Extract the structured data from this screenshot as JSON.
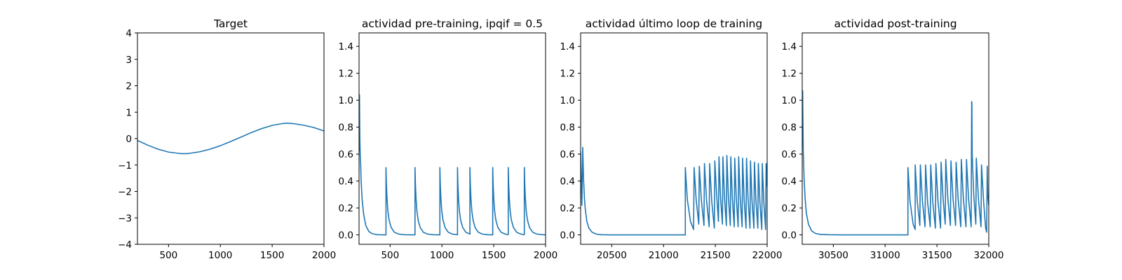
{
  "figure": {
    "line_color": "#1f77b4"
  },
  "chart_data": [
    {
      "type": "line",
      "title": "Target",
      "xlabel": "",
      "ylabel": "",
      "xlim": [
        200,
        2000
      ],
      "ylim": [
        -4,
        4
      ],
      "x_ticks": [
        500,
        1000,
        1500,
        2000
      ],
      "y_ticks": [
        -4,
        -3,
        -2,
        -1,
        0,
        1,
        2,
        3,
        4
      ],
      "grid": false,
      "series": [
        {
          "x": [
            200,
            300,
            400,
            500,
            600,
            650,
            700,
            800,
            900,
            1000,
            1100,
            1200,
            1300,
            1400,
            1500,
            1600,
            1650,
            1700,
            1800,
            1900,
            2000
          ],
          "y": [
            -0.07,
            -0.25,
            -0.4,
            -0.51,
            -0.56,
            -0.57,
            -0.56,
            -0.5,
            -0.4,
            -0.27,
            -0.11,
            0.06,
            0.23,
            0.38,
            0.5,
            0.57,
            0.58,
            0.57,
            0.51,
            0.42,
            0.29
          ]
        }
      ]
    },
    {
      "type": "line",
      "title": "actividad pre-training, ipqif = 0.5",
      "xlabel": "",
      "ylabel": "",
      "xlim": [
        200,
        2000
      ],
      "ylim": [
        -0.07,
        1.5
      ],
      "x_ticks": [
        500,
        1000,
        1500,
        2000
      ],
      "y_ticks": [
        0.0,
        0.2,
        0.4,
        0.6,
        0.8,
        1.0,
        1.2,
        1.4
      ],
      "grid": false,
      "series": [
        {
          "x": [
            200,
            204,
            208,
            212,
            216,
            220,
            230,
            245,
            265,
            295,
            330,
            380,
            460,
            460,
            464,
            470,
            478,
            490,
            510,
            540,
            580,
            640,
            740,
            740,
            744,
            750,
            758,
            770,
            790,
            820,
            860,
            920,
            980,
            980,
            984,
            990,
            998,
            1010,
            1030,
            1060,
            1100,
            1150,
            1150,
            1154,
            1160,
            1168,
            1180,
            1200,
            1230,
            1270,
            1270,
            1274,
            1280,
            1288,
            1300,
            1320,
            1350,
            1390,
            1440,
            1490,
            1490,
            1494,
            1500,
            1508,
            1520,
            1540,
            1570,
            1610,
            1640,
            1640,
            1644,
            1650,
            1658,
            1670,
            1690,
            1720,
            1760,
            1795,
            1795,
            1799,
            1805,
            1813,
            1825,
            1845,
            1875,
            1915,
            1975,
            2000
          ],
          "y": [
            0.62,
            1.04,
            0.7,
            0.58,
            0.52,
            0.4,
            0.26,
            0.15,
            0.07,
            0.025,
            0.008,
            0.001,
            0.0,
            0.5,
            0.38,
            0.27,
            0.18,
            0.11,
            0.055,
            0.02,
            0.006,
            0.001,
            0.0,
            0.5,
            0.38,
            0.27,
            0.18,
            0.11,
            0.055,
            0.02,
            0.006,
            0.001,
            0.0,
            0.5,
            0.38,
            0.27,
            0.18,
            0.11,
            0.055,
            0.02,
            0.006,
            0.001,
            0.5,
            0.38,
            0.27,
            0.18,
            0.11,
            0.055,
            0.02,
            0.006,
            0.5,
            0.38,
            0.27,
            0.18,
            0.11,
            0.055,
            0.02,
            0.006,
            0.001,
            0.0,
            0.5,
            0.38,
            0.27,
            0.18,
            0.11,
            0.055,
            0.02,
            0.006,
            0.002,
            0.5,
            0.38,
            0.27,
            0.18,
            0.11,
            0.055,
            0.02,
            0.006,
            0.002,
            0.5,
            0.38,
            0.27,
            0.18,
            0.11,
            0.055,
            0.02,
            0.006,
            0.001,
            0.0
          ]
        }
      ]
    },
    {
      "type": "line",
      "title": "actividad último loop de training",
      "xlabel": "",
      "ylabel": "",
      "xlim": [
        20200,
        22000
      ],
      "ylim": [
        -0.07,
        1.5
      ],
      "x_ticks": [
        20500,
        21000,
        21500,
        22000
      ],
      "y_ticks": [
        0.0,
        0.2,
        0.4,
        0.6,
        0.8,
        1.0,
        1.2,
        1.4
      ],
      "grid": false,
      "series": [
        {
          "x": [
            20200,
            20205,
            20212,
            20220,
            20228,
            20236,
            20245,
            20260,
            20280,
            20310,
            20350,
            20400,
            20500,
            20700,
            21000,
            21210,
            21210,
            21230,
            21260,
            21290,
            21295,
            21315,
            21340,
            21345,
            21365,
            21390,
            21395,
            21415,
            21440,
            21445,
            21465,
            21490,
            21495,
            21512,
            21530,
            21535,
            21550,
            21568,
            21573,
            21588,
            21606,
            21611,
            21626,
            21644,
            21649,
            21664,
            21682,
            21687,
            21702,
            21720,
            21725,
            21740,
            21758,
            21763,
            21778,
            21796,
            21801,
            21816,
            21834,
            21839,
            21854,
            21872,
            21877,
            21892,
            21910,
            21915,
            21930,
            21948,
            21953,
            21968,
            21985,
            21990,
            22000
          ],
          "y": [
            0.62,
            0.43,
            0.22,
            0.65,
            0.42,
            0.28,
            0.19,
            0.1,
            0.05,
            0.02,
            0.006,
            0.001,
            0.0,
            0.0,
            0.0,
            0.0,
            0.5,
            0.26,
            0.1,
            0.04,
            0.5,
            0.26,
            0.08,
            0.51,
            0.26,
            0.07,
            0.53,
            0.26,
            0.06,
            0.53,
            0.25,
            0.05,
            0.55,
            0.3,
            0.1,
            0.58,
            0.28,
            0.08,
            0.58,
            0.28,
            0.07,
            0.59,
            0.28,
            0.07,
            0.58,
            0.27,
            0.06,
            0.57,
            0.27,
            0.06,
            0.58,
            0.27,
            0.06,
            0.57,
            0.26,
            0.05,
            0.57,
            0.26,
            0.05,
            0.55,
            0.25,
            0.05,
            0.54,
            0.25,
            0.05,
            0.53,
            0.24,
            0.04,
            0.53,
            0.24,
            0.04,
            0.53,
            0.36
          ]
        }
      ]
    },
    {
      "type": "line",
      "title": "actividad post-training",
      "xlabel": "",
      "ylabel": "",
      "xlim": [
        30200,
        32000
      ],
      "ylim": [
        -0.07,
        1.5
      ],
      "x_ticks": [
        30500,
        31000,
        31500,
        32000
      ],
      "y_ticks": [
        0.0,
        0.2,
        0.4,
        0.6,
        0.8,
        1.0,
        1.2,
        1.4
      ],
      "grid": false,
      "series": [
        {
          "x": [
            30200,
            30204,
            30210,
            30218,
            30228,
            30240,
            30260,
            30290,
            30330,
            30380,
            30450,
            30600,
            31000,
            31220,
            31220,
            31240,
            31270,
            31290,
            31290,
            31310,
            31335,
            31340,
            31360,
            31385,
            31390,
            31410,
            31435,
            31440,
            31460,
            31485,
            31490,
            31510,
            31535,
            31540,
            31560,
            31580,
            31585,
            31605,
            31630,
            31635,
            31655,
            31680,
            31685,
            31705,
            31730,
            31735,
            31755,
            31780,
            31785,
            31805,
            31830,
            31835,
            31837,
            31840,
            31855,
            31875,
            31880,
            31900,
            31925,
            31930,
            31950,
            31970,
            31980,
            31985,
            31990,
            32000
          ],
          "y": [
            0.65,
            1.07,
            0.62,
            0.42,
            0.27,
            0.16,
            0.08,
            0.03,
            0.01,
            0.003,
            0.001,
            0.0,
            0.0,
            0.0,
            0.5,
            0.25,
            0.08,
            0.04,
            0.52,
            0.25,
            0.07,
            0.52,
            0.25,
            0.06,
            0.52,
            0.24,
            0.06,
            0.52,
            0.24,
            0.05,
            0.53,
            0.25,
            0.05,
            0.54,
            0.26,
            0.08,
            0.56,
            0.27,
            0.07,
            0.55,
            0.27,
            0.07,
            0.54,
            0.26,
            0.06,
            0.56,
            0.27,
            0.06,
            0.56,
            0.27,
            0.06,
            0.99,
            0.98,
            0.6,
            0.3,
            0.08,
            0.57,
            0.27,
            0.06,
            0.52,
            0.25,
            0.05,
            0.02,
            0.51,
            0.3,
            0.22
          ]
        }
      ]
    }
  ]
}
